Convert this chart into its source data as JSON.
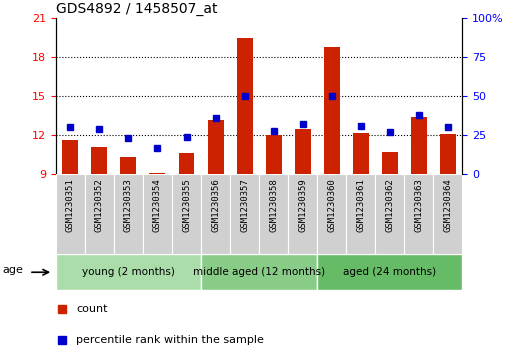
{
  "title": "GDS4892 / 1458507_at",
  "samples": [
    "GSM1230351",
    "GSM1230352",
    "GSM1230353",
    "GSM1230354",
    "GSM1230355",
    "GSM1230356",
    "GSM1230357",
    "GSM1230358",
    "GSM1230359",
    "GSM1230360",
    "GSM1230361",
    "GSM1230362",
    "GSM1230363",
    "GSM1230364"
  ],
  "counts": [
    11.6,
    11.1,
    10.3,
    9.1,
    10.6,
    13.2,
    19.5,
    12.0,
    12.5,
    18.8,
    12.2,
    10.7,
    13.4,
    12.1
  ],
  "percentiles": [
    30,
    29,
    23,
    17,
    24,
    36,
    50,
    28,
    32,
    50,
    31,
    27,
    38,
    30
  ],
  "ylim_left": [
    9,
    21
  ],
  "ylim_right": [
    0,
    100
  ],
  "yticks_left": [
    9,
    12,
    15,
    18,
    21
  ],
  "yticks_right": [
    0,
    25,
    50,
    75,
    100
  ],
  "bar_color": "#cc2200",
  "dot_color": "#0000cc",
  "groups": [
    {
      "label": "young (2 months)",
      "start": 0,
      "end": 5
    },
    {
      "label": "middle aged (12 months)",
      "start": 5,
      "end": 9
    },
    {
      "label": "aged (24 months)",
      "start": 9,
      "end": 14
    }
  ],
  "group_colors": [
    "#aaddaa",
    "#88cc88",
    "#66bb66"
  ],
  "age_label": "age",
  "legend_count": "count",
  "legend_percentile": "percentile rank within the sample",
  "tick_area_color": "#cccccc",
  "gridline_y": [
    12,
    15,
    18
  ]
}
